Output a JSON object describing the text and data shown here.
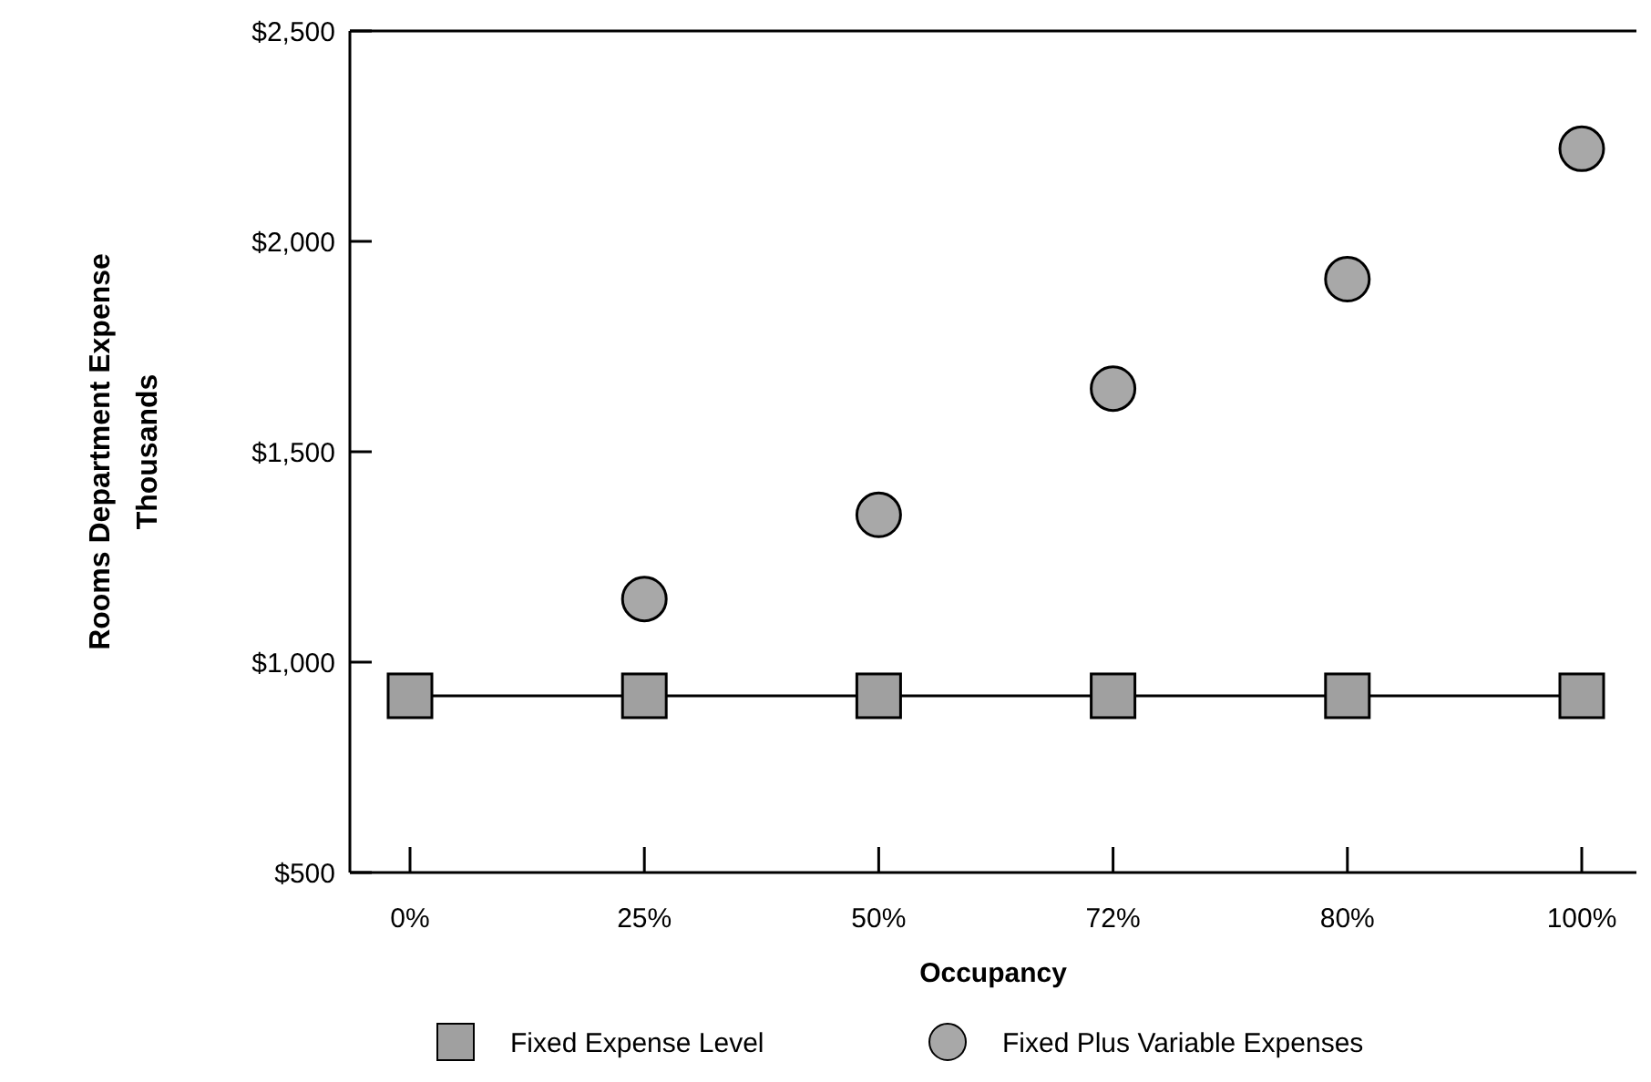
{
  "chart_data": {
    "type": "line",
    "xlabel": "Occupancy",
    "ylabel": "Rooms Department Expense\nThousands",
    "categories": [
      "0%",
      "25%",
      "50%",
      "72%",
      "80%",
      "100%"
    ],
    "series": [
      {
        "name": "Fixed Expense Level",
        "marker": "square",
        "color": "#a0a0a0",
        "values": [
          920,
          920,
          920,
          920,
          920,
          920
        ]
      },
      {
        "name": "Fixed Plus Variable Expenses",
        "type": "scatter",
        "marker": "circle",
        "color": "#a8a8a8",
        "values": [
          null,
          1150,
          1350,
          1650,
          1910,
          2220
        ]
      }
    ],
    "ylim": [
      500,
      2500
    ],
    "yticks": [
      {
        "value": 500,
        "label": "$500"
      },
      {
        "value": 1000,
        "label": "$1,000"
      },
      {
        "value": 1500,
        "label": "$1,500"
      },
      {
        "value": 2000,
        "label": "$2,000"
      },
      {
        "value": 2500,
        "label": "$2,500"
      }
    ],
    "grid": false,
    "legend": "bottom"
  }
}
